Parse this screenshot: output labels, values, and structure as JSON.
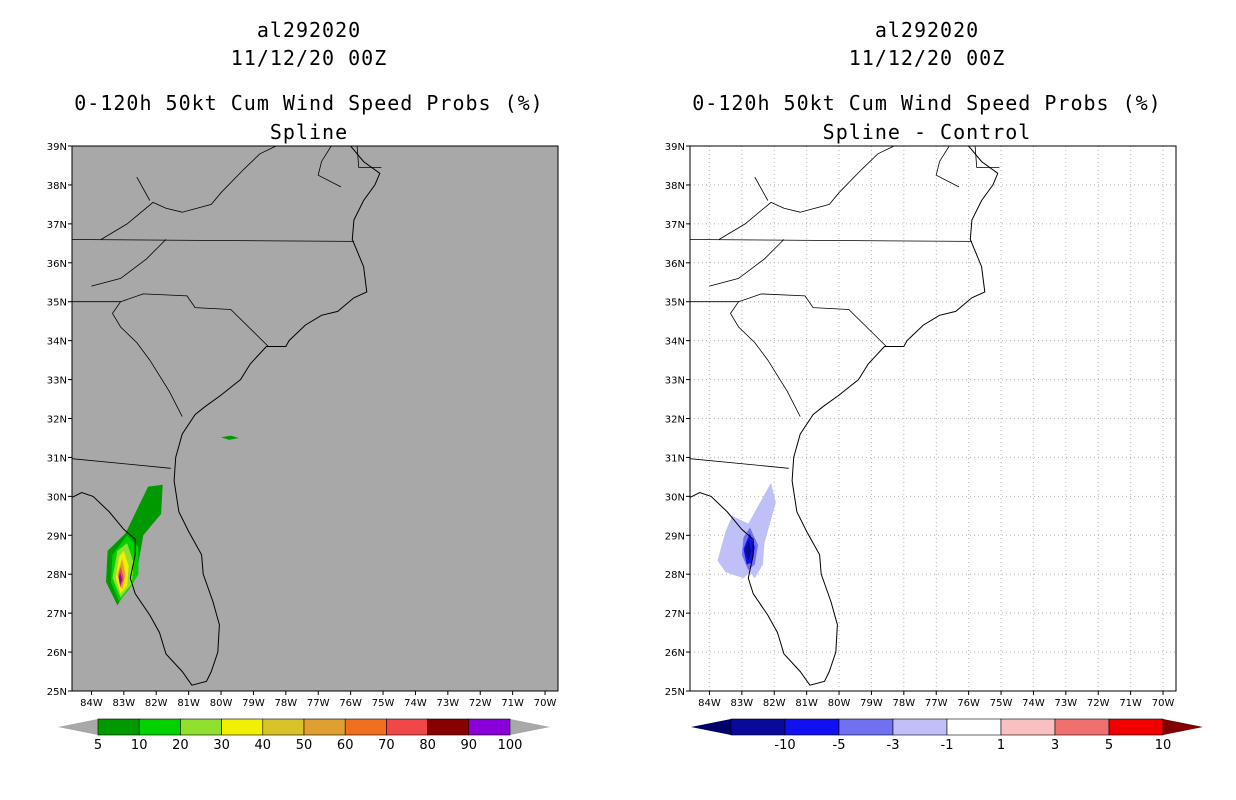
{
  "panels": [
    {
      "storm": "al292020",
      "datetime": "11/12/20 00Z",
      "product": "0-120h 50kt Cum Wind Speed Probs (%)",
      "subtitle": "Spline",
      "background": "#a8a8a8",
      "grid": false,
      "colorbar": {
        "colors": [
          "#009a00",
          "#00d200",
          "#90e030",
          "#f0f000",
          "#d8c428",
          "#e0a030",
          "#f07020",
          "#f04848",
          "#880000",
          "#8a00d8"
        ],
        "labels": [
          "5",
          "10",
          "20",
          "30",
          "40",
          "50",
          "60",
          "70",
          "80",
          "90",
          "100"
        ],
        "under_color": "#a8a8a8",
        "over_color": "#a8a8a8"
      },
      "shading": [
        {
          "color": "#009a00",
          "points": [
            [
              -82.25,
              30.25
            ],
            [
              -81.8,
              30.3
            ],
            [
              -81.85,
              29.55
            ],
            [
              -82.4,
              29.0
            ],
            [
              -82.6,
              28.05
            ],
            [
              -83.2,
              27.2
            ],
            [
              -83.55,
              27.8
            ],
            [
              -83.5,
              28.6
            ],
            [
              -82.95,
              29.05
            ]
          ]
        },
        {
          "color": "#00d200",
          "points": [
            [
              -82.9,
              29.0
            ],
            [
              -82.55,
              28.7
            ],
            [
              -82.55,
              28.0
            ],
            [
              -82.85,
              27.6
            ],
            [
              -83.15,
              27.3
            ],
            [
              -83.4,
              27.8
            ],
            [
              -83.35,
              28.5
            ]
          ]
        },
        {
          "color": "#90e030",
          "points": [
            [
              -82.9,
              28.8
            ],
            [
              -82.7,
              28.3
            ],
            [
              -82.75,
              27.75
            ],
            [
              -83.1,
              27.4
            ],
            [
              -83.35,
              27.9
            ],
            [
              -83.2,
              28.6
            ]
          ]
        },
        {
          "color": "#f0f000",
          "points": [
            [
              -83.0,
              28.6
            ],
            [
              -82.85,
              28.2
            ],
            [
              -82.9,
              27.7
            ],
            [
              -83.1,
              27.5
            ],
            [
              -83.25,
              27.9
            ],
            [
              -83.15,
              28.45
            ]
          ]
        },
        {
          "color": "#e0a030",
          "points": [
            [
              -83.05,
              28.4
            ],
            [
              -82.95,
              28.0
            ],
            [
              -83.05,
              27.6
            ],
            [
              -83.2,
              28.0
            ]
          ]
        },
        {
          "color": "#f04848",
          "points": [
            [
              -83.1,
              28.2
            ],
            [
              -83.0,
              27.9
            ],
            [
              -83.1,
              27.65
            ],
            [
              -83.17,
              27.95
            ]
          ]
        },
        {
          "color": "#8a00d8",
          "points": [
            [
              -83.12,
              28.05
            ],
            [
              -83.05,
              27.85
            ],
            [
              -83.12,
              27.72
            ],
            [
              -83.16,
              27.9
            ]
          ]
        },
        {
          "color": "#009a00",
          "points": [
            [
              -80.0,
              31.52
            ],
            [
              -79.7,
              31.56
            ],
            [
              -79.45,
              31.5
            ],
            [
              -79.75,
              31.45
            ]
          ]
        }
      ]
    },
    {
      "storm": "al292020",
      "datetime": "11/12/20 00Z",
      "product": "0-120h 50kt Cum Wind Speed Probs (%)",
      "subtitle": "Spline - Control",
      "background": "#ffffff",
      "grid": true,
      "colorbar": {
        "colors": [
          "#0a0a9a",
          "#1010f0",
          "#7070f0",
          "#c0c0f8",
          "#ffffff",
          "#f8c0c0",
          "#f07070",
          "#f00000"
        ],
        "labels": [
          "-10",
          "-5",
          "-3",
          "-1",
          "1",
          "3",
          "5",
          "10"
        ],
        "under_color": "#00006a",
        "over_color": "#800000"
      },
      "shading": [
        {
          "color": "#c0c0f8",
          "points": [
            [
              -82.1,
              30.35
            ],
            [
              -81.95,
              29.85
            ],
            [
              -82.3,
              28.8
            ],
            [
              -82.35,
              28.25
            ],
            [
              -82.6,
              27.9
            ],
            [
              -82.75,
              28.05
            ],
            [
              -82.95,
              27.9
            ],
            [
              -83.5,
              28.05
            ],
            [
              -83.75,
              28.35
            ],
            [
              -83.5,
              29.1
            ],
            [
              -83.3,
              29.5
            ],
            [
              -82.8,
              29.3
            ]
          ]
        },
        {
          "color": "#7070f0",
          "points": [
            [
              -82.75,
              29.2
            ],
            [
              -82.5,
              28.75
            ],
            [
              -82.6,
              28.25
            ],
            [
              -82.8,
              28.1
            ],
            [
              -83.0,
              28.5
            ],
            [
              -82.95,
              28.95
            ]
          ]
        },
        {
          "color": "#1010f0",
          "points": [
            [
              -82.75,
              29.05
            ],
            [
              -82.6,
              28.7
            ],
            [
              -82.68,
              28.3
            ],
            [
              -82.85,
              28.25
            ],
            [
              -82.95,
              28.65
            ]
          ]
        },
        {
          "color": "#0a0a9a",
          "points": [
            [
              -82.8,
              28.9
            ],
            [
              -82.7,
              28.6
            ],
            [
              -82.8,
              28.35
            ],
            [
              -82.9,
              28.6
            ]
          ]
        }
      ]
    }
  ],
  "map": {
    "lon_ticks": [
      "84W",
      "83W",
      "82W",
      "81W",
      "80W",
      "79W",
      "78W",
      "77W",
      "76W",
      "75W",
      "74W",
      "73W",
      "72W",
      "71W",
      "70W"
    ],
    "lat_ticks": [
      "39N",
      "38N",
      "37N",
      "36N",
      "35N",
      "34N",
      "33N",
      "32N",
      "31N",
      "30N",
      "29N",
      "28N",
      "27N",
      "26N",
      "25N"
    ]
  },
  "geo": {
    "coast": [
      [
        -76.0,
        39.0
      ],
      [
        -75.6,
        38.6
      ],
      [
        -75.1,
        38.3
      ],
      [
        -75.25,
        38.0
      ],
      [
        -75.6,
        37.6
      ],
      [
        -75.9,
        37.1
      ],
      [
        -75.95,
        36.6
      ],
      [
        -75.6,
        35.9
      ],
      [
        -75.5,
        35.25
      ],
      [
        -75.9,
        35.1
      ],
      [
        -76.4,
        34.75
      ],
      [
        -76.9,
        34.65
      ],
      [
        -77.4,
        34.4
      ],
      [
        -77.9,
        34.0
      ],
      [
        -78.0,
        33.85
      ],
      [
        -78.6,
        33.85
      ],
      [
        -79.1,
        33.4
      ],
      [
        -79.4,
        33.0
      ],
      [
        -80.0,
        32.6
      ],
      [
        -80.5,
        32.3
      ],
      [
        -80.8,
        32.1
      ],
      [
        -81.2,
        31.6
      ],
      [
        -81.4,
        31.0
      ],
      [
        -81.45,
        30.4
      ],
      [
        -81.3,
        29.6
      ],
      [
        -81.0,
        29.1
      ],
      [
        -80.6,
        28.5
      ],
      [
        -80.55,
        28.0
      ],
      [
        -80.25,
        27.3
      ],
      [
        -80.05,
        26.7
      ],
      [
        -80.1,
        26.0
      ],
      [
        -80.3,
        25.5
      ],
      [
        -80.45,
        25.25
      ],
      [
        -80.9,
        25.15
      ],
      [
        -81.2,
        25.5
      ],
      [
        -81.7,
        25.95
      ],
      [
        -81.9,
        26.5
      ],
      [
        -82.2,
        26.95
      ],
      [
        -82.65,
        27.5
      ],
      [
        -82.8,
        27.9
      ],
      [
        -82.65,
        28.5
      ],
      [
        -82.65,
        28.9
      ],
      [
        -83.0,
        29.15
      ],
      [
        -83.45,
        29.6
      ],
      [
        -83.95,
        30.0
      ],
      [
        -84.3,
        30.1
      ],
      [
        -85.0,
        29.8
      ]
    ],
    "borders": [
      [
        [
          -85,
          31.0
        ],
        [
          -81.55,
          30.72
        ]
      ],
      [
        [
          -81.2,
          32.05
        ],
        [
          -81.6,
          32.7
        ],
        [
          -82.2,
          33.5
        ],
        [
          -82.6,
          33.95
        ],
        [
          -83.1,
          34.35
        ],
        [
          -83.35,
          34.7
        ],
        [
          -83.1,
          35.0
        ],
        [
          -85,
          35.0
        ]
      ],
      [
        [
          -78.55,
          33.86
        ],
        [
          -79.7,
          34.8
        ],
        [
          -80.8,
          34.85
        ],
        [
          -81.05,
          35.15
        ],
        [
          -82.4,
          35.2
        ],
        [
          -83.1,
          35.0
        ]
      ],
      [
        [
          -85,
          36.6
        ],
        [
          -75.9,
          36.55
        ]
      ],
      [
        [
          -84.0,
          35.4
        ],
        [
          -83.1,
          35.6
        ],
        [
          -82.3,
          36.1
        ],
        [
          -81.7,
          36.6
        ]
      ],
      [
        [
          -83.7,
          36.6
        ],
        [
          -82.9,
          37.0
        ],
        [
          -82.1,
          37.55
        ],
        [
          -81.7,
          37.4
        ],
        [
          -81.2,
          37.3
        ],
        [
          -80.3,
          37.5
        ],
        [
          -80.0,
          37.8
        ],
        [
          -79.3,
          38.4
        ],
        [
          -78.8,
          38.8
        ],
        [
          -78.3,
          39.0
        ]
      ],
      [
        [
          -82.6,
          38.2
        ],
        [
          -82.2,
          37.6
        ]
      ],
      [
        [
          -76.6,
          39.0
        ],
        [
          -76.9,
          38.6
        ],
        [
          -77.0,
          38.25
        ],
        [
          -76.3,
          37.95
        ]
      ],
      [
        [
          -75.8,
          39.0
        ],
        [
          -75.75,
          38.45
        ],
        [
          -75.05,
          38.45
        ]
      ]
    ]
  }
}
